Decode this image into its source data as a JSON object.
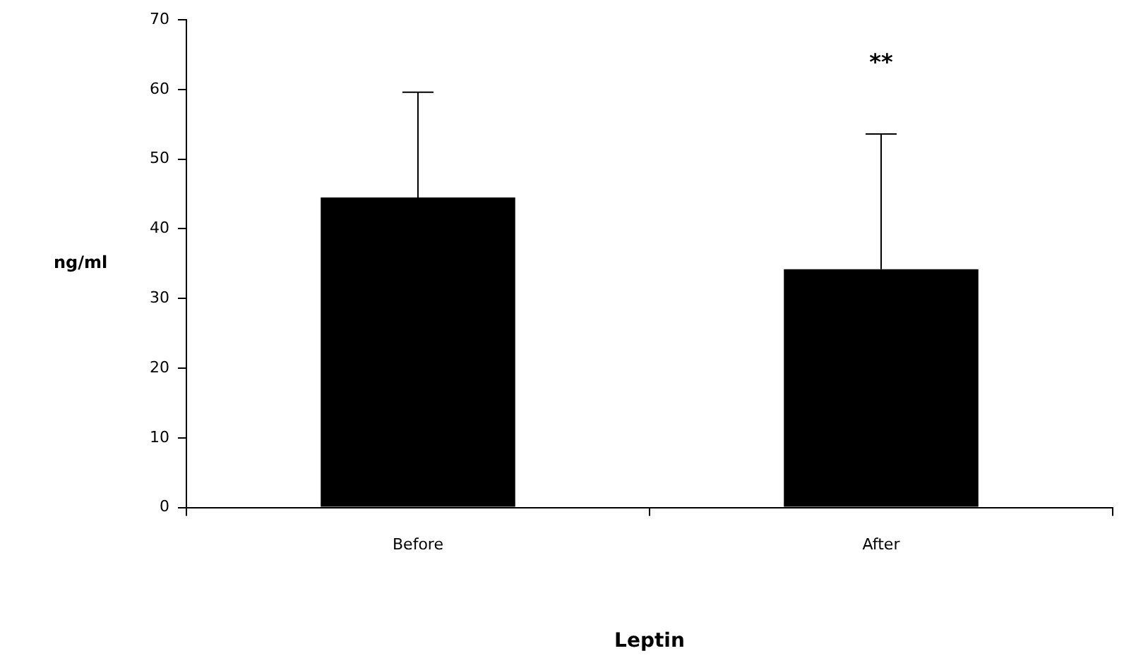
{
  "chart_data": {
    "type": "bar",
    "categories": [
      "Before",
      "After"
    ],
    "values": [
      44.5,
      34.2
    ],
    "color": "#000000",
    "errors": [
      [
        44.5,
        59.6
      ],
      [
        34.2,
        53.6
      ]
    ],
    "ylim": [
      0,
      70
    ],
    "yticks": [
      0,
      10,
      20,
      30,
      40,
      50,
      60,
      70
    ],
    "grid": false,
    "legend": false,
    "xlabel": "Leptin",
    "ylabel": "ng/ml",
    "annotations": [
      "**"
    ]
  }
}
